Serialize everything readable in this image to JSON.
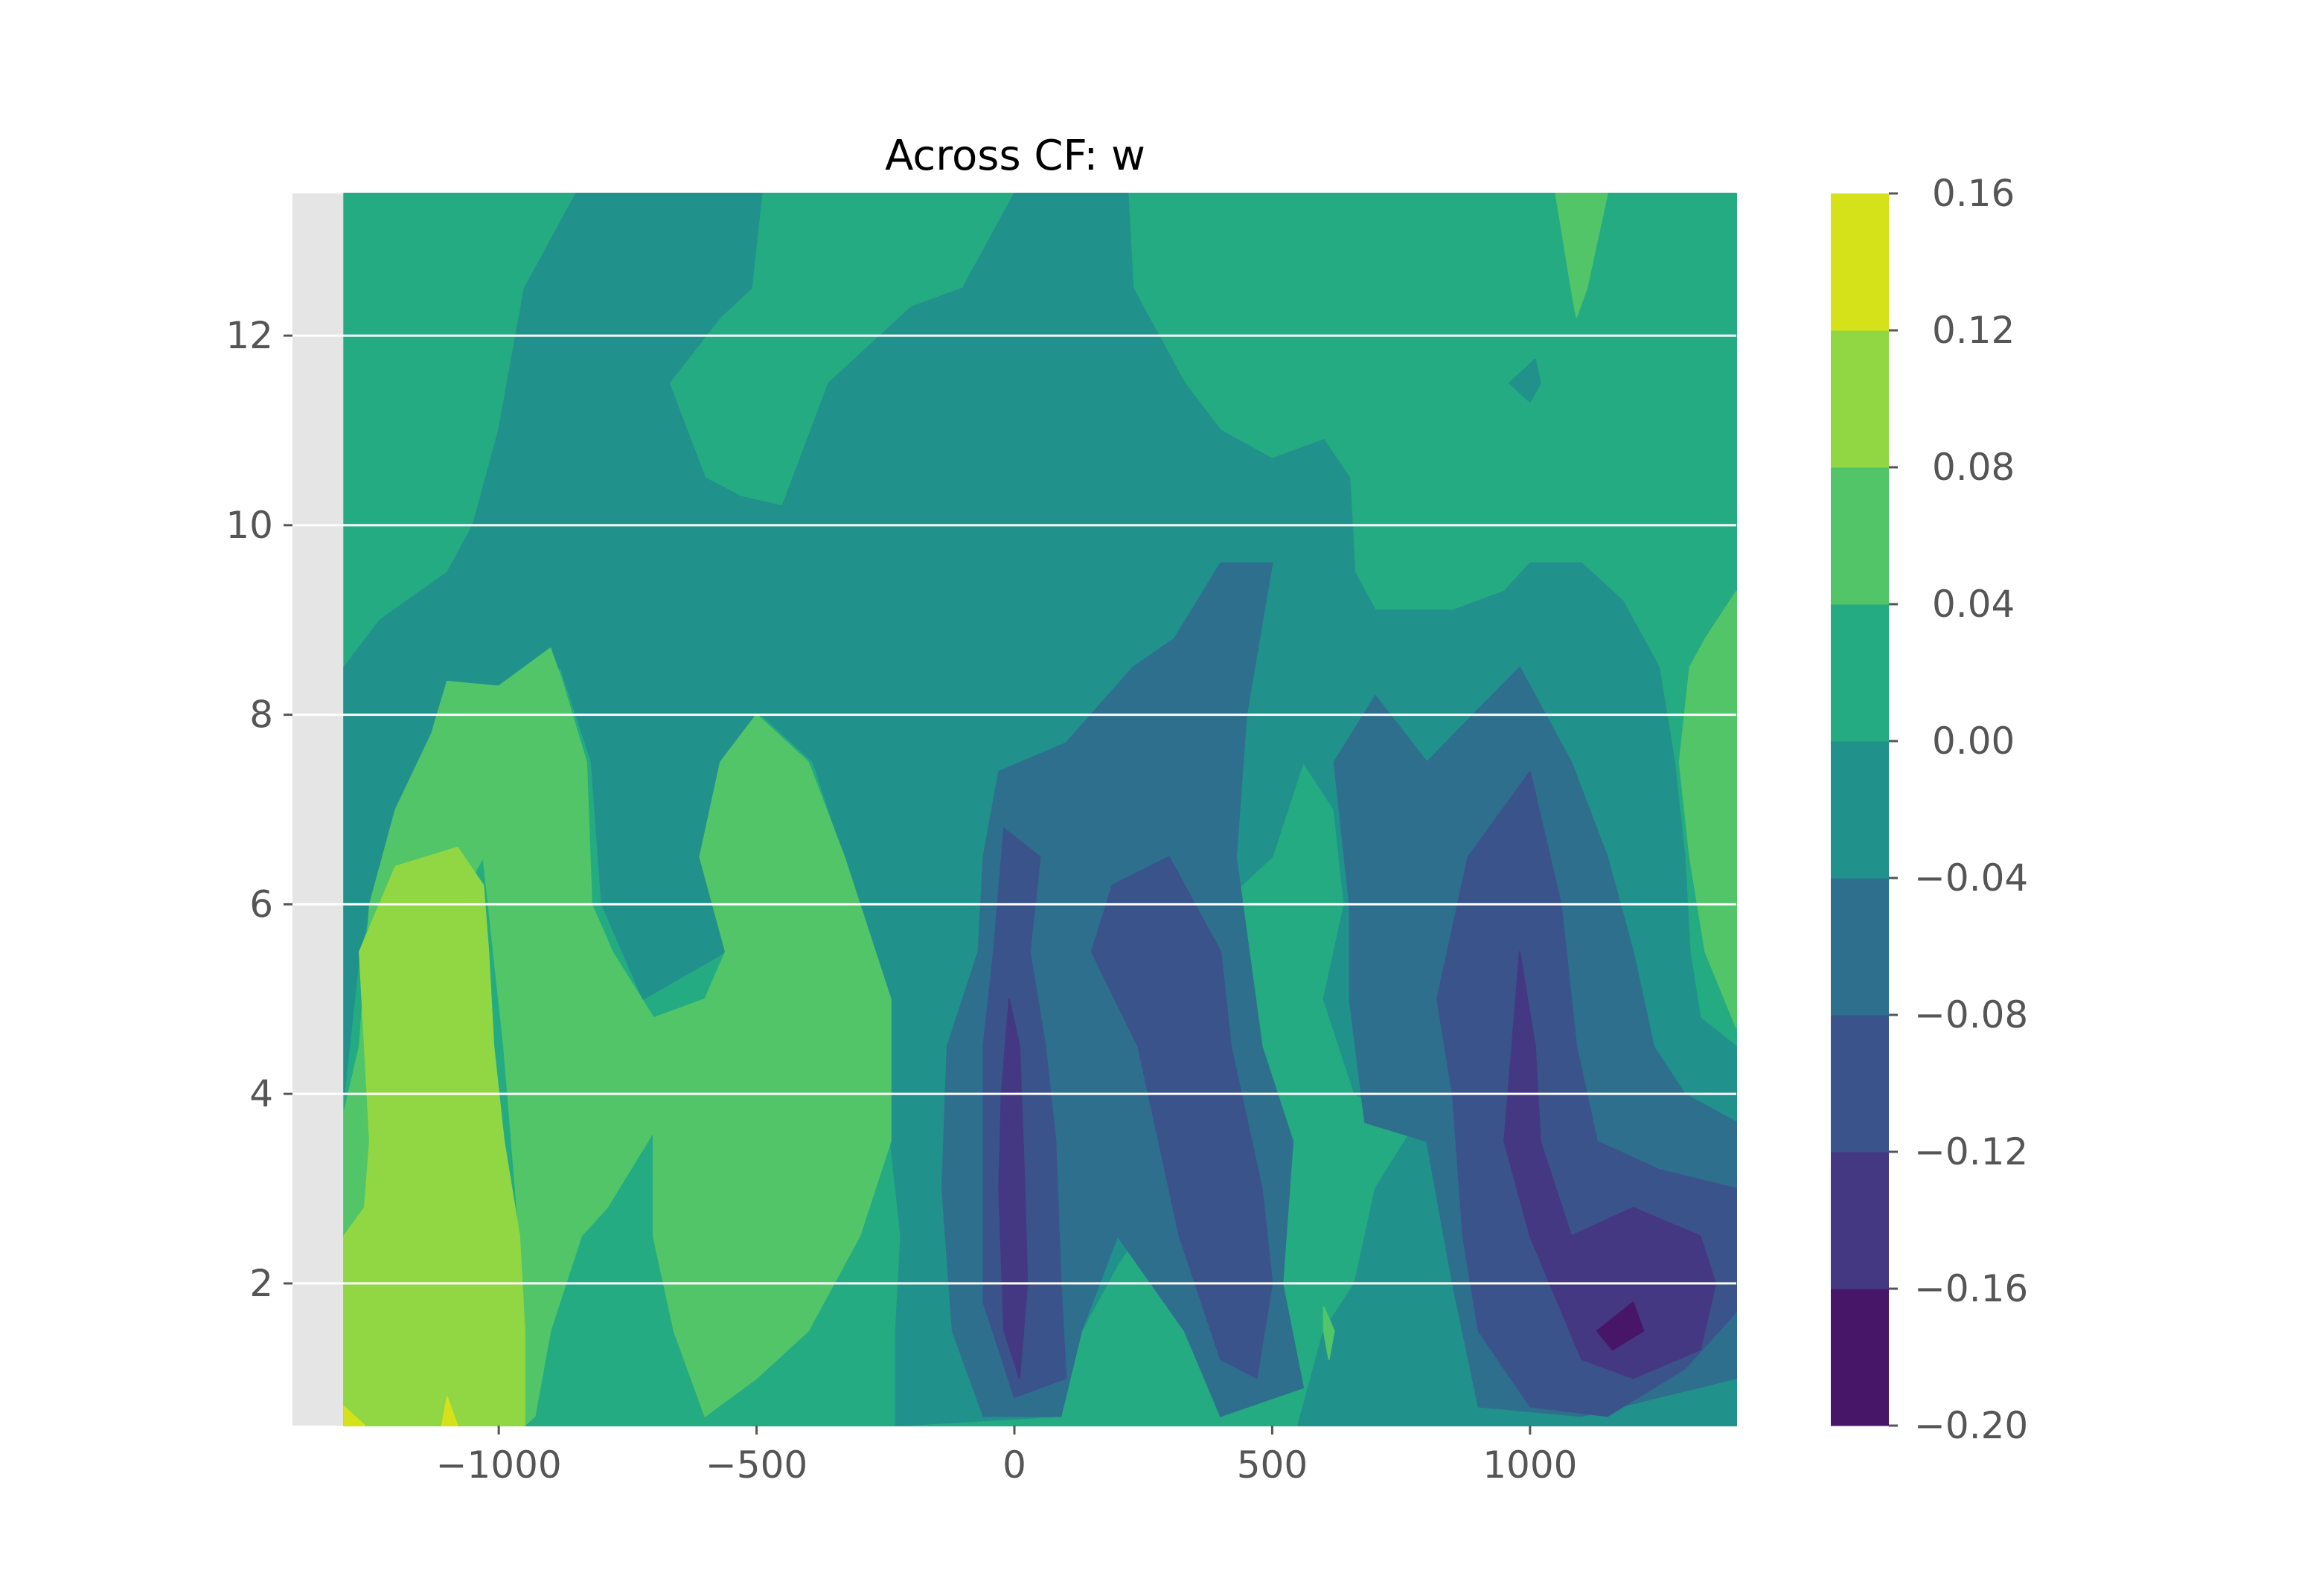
{
  "chart_data": {
    "type": "heatmap",
    "subtype": "filled-contour",
    "title": "Across CF: w",
    "xlabel": "",
    "ylabel": "",
    "colorbar_label": "",
    "xlim": [
      -1400,
      1400
    ],
    "ylim": [
      0.5,
      13.5
    ],
    "data_extent": {
      "x": [
        -1300,
        1400
      ],
      "y": [
        0.5,
        13.5
      ]
    },
    "xticks": [
      {
        "value": -1000,
        "label": "−1000"
      },
      {
        "value": -500,
        "label": "−500"
      },
      {
        "value": 0,
        "label": "0"
      },
      {
        "value": 500,
        "label": "500"
      },
      {
        "value": 1000,
        "label": "1000"
      }
    ],
    "yticks": [
      {
        "value": 2,
        "label": "2"
      },
      {
        "value": 4,
        "label": "4"
      },
      {
        "value": 6,
        "label": "6"
      },
      {
        "value": 8,
        "label": "8"
      },
      {
        "value": 10,
        "label": "10"
      },
      {
        "value": 12,
        "label": "12"
      }
    ],
    "levels": [
      -0.2,
      -0.16,
      -0.12,
      -0.08,
      -0.04,
      0.0,
      0.04,
      0.08,
      0.12,
      0.16
    ],
    "level_labels": [
      "−0.20",
      "−0.16",
      "−0.12",
      "−0.08",
      "−0.04",
      "0.00",
      "0.04",
      "0.08",
      "0.12",
      "0.16"
    ],
    "band_colors": [
      "#481668",
      "#453882",
      "#3b538b",
      "#2e6f8e",
      "#21918c",
      "#25ab82",
      "#52c569",
      "#90d743",
      "#d5e21a"
    ],
    "background_color": "#e5e5e5",
    "grid_color": "#ffffff",
    "grid": false,
    "colorbar": "right",
    "regions": [
      {
        "level": 0.0,
        "points": [
          [
            -1300,
            0.5
          ],
          [
            1400,
            0.5
          ],
          [
            1400,
            13.5
          ],
          [
            -1300,
            13.5
          ]
        ]
      },
      {
        "level": -0.04,
        "points": [
          [
            -490,
            13.5
          ],
          [
            -510,
            12.5
          ],
          [
            -570,
            12.2
          ],
          [
            -670,
            11.5
          ],
          [
            -600,
            10.5
          ],
          [
            -530,
            10.3
          ],
          [
            -450,
            10.2
          ],
          [
            -360,
            11.5
          ],
          [
            -200,
            12.3
          ],
          [
            -100,
            12.5
          ],
          [
            0,
            13.5
          ],
          [
            220,
            13.5
          ],
          [
            230,
            12.5
          ],
          [
            330,
            11.5
          ],
          [
            400,
            11
          ],
          [
            500,
            10.7
          ],
          [
            600,
            10.9
          ],
          [
            650,
            10.5
          ],
          [
            660,
            9.5
          ],
          [
            700,
            9.1
          ],
          [
            850,
            9.1
          ],
          [
            950,
            9.3
          ],
          [
            1000,
            9.6
          ],
          [
            1100,
            9.6
          ],
          [
            1180,
            9.2
          ],
          [
            1250,
            8.5
          ],
          [
            1280,
            7.5
          ],
          [
            1300,
            6.5
          ],
          [
            1310,
            5.5
          ],
          [
            1330,
            4.8
          ],
          [
            1400,
            4.5
          ],
          [
            1400,
            0.5
          ],
          [
            550,
            0.5
          ],
          [
            600,
            1.5
          ],
          [
            660,
            2
          ],
          [
            700,
            3
          ],
          [
            780,
            3.7
          ],
          [
            660,
            4
          ],
          [
            600,
            5
          ],
          [
            640,
            6
          ],
          [
            620,
            7
          ],
          [
            560,
            7.5
          ],
          [
            500,
            6.5
          ],
          [
            400,
            6
          ],
          [
            350,
            4.5
          ],
          [
            300,
            3
          ],
          [
            200,
            2.2
          ],
          [
            130,
            1.5
          ],
          [
            90,
            0.6
          ],
          [
            -230,
            0.5
          ],
          [
            -230,
            1.5
          ],
          [
            -220,
            2.5
          ],
          [
            -240,
            3.5
          ],
          [
            -250,
            5
          ],
          [
            -330,
            6.5
          ],
          [
            -390,
            7.5
          ],
          [
            -490,
            8
          ],
          [
            -570,
            7.5
          ],
          [
            -610,
            6.5
          ],
          [
            -560,
            5.5
          ],
          [
            -720,
            5
          ],
          [
            -800,
            6
          ],
          [
            -820,
            7.5
          ],
          [
            -880,
            8.5
          ],
          [
            -960,
            8.2
          ],
          [
            -1100,
            8
          ],
          [
            -1200,
            7
          ],
          [
            -1270,
            5.5
          ],
          [
            -1300,
            4
          ],
          [
            -1300,
            8.5
          ],
          [
            -1230,
            9
          ],
          [
            -1100,
            9.5
          ],
          [
            -1050,
            10
          ],
          [
            -1000,
            11
          ],
          [
            -950,
            12.5
          ],
          [
            -850,
            13.5
          ]
        ]
      },
      {
        "level": -0.08,
        "points": [
          [
            -60,
            6.5
          ],
          [
            -30,
            7.4
          ],
          [
            100,
            7.7
          ],
          [
            230,
            8.5
          ],
          [
            310,
            8.8
          ],
          [
            400,
            9.6
          ],
          [
            500,
            9.6
          ],
          [
            450,
            8
          ],
          [
            430,
            6.5
          ],
          [
            480,
            4.5
          ],
          [
            540,
            3.5
          ],
          [
            520,
            2
          ],
          [
            560,
            0.9
          ],
          [
            400,
            0.6
          ],
          [
            330,
            1.5
          ],
          [
            200,
            2.5
          ],
          [
            130,
            1.5
          ],
          [
            90,
            0.6
          ],
          [
            -60,
            0.6
          ],
          [
            -120,
            1.5
          ],
          [
            -140,
            3
          ],
          [
            -130,
            4.5
          ],
          [
            -70,
            5.5
          ]
        ]
      },
      {
        "level": -0.08,
        "points": [
          [
            620,
            7.5
          ],
          [
            700,
            8.2
          ],
          [
            800,
            7.5
          ],
          [
            980,
            8.5
          ],
          [
            1080,
            7.5
          ],
          [
            1150,
            6.5
          ],
          [
            1200,
            5.5
          ],
          [
            1240,
            4.5
          ],
          [
            1300,
            4
          ],
          [
            1400,
            3.7
          ],
          [
            1400,
            1
          ],
          [
            1100,
            0.6
          ],
          [
            900,
            0.7
          ],
          [
            850,
            2
          ],
          [
            800,
            3.5
          ],
          [
            680,
            3.7
          ],
          [
            650,
            5
          ],
          [
            650,
            6
          ]
        ]
      },
      {
        "level": -0.12,
        "points": [
          [
            -20,
            6.8
          ],
          [
            50,
            6.5
          ],
          [
            30,
            5.5
          ],
          [
            60,
            4.5
          ],
          [
            80,
            3.5
          ],
          [
            90,
            2
          ],
          [
            100,
            1
          ],
          [
            0,
            0.8
          ],
          [
            -60,
            1.8
          ],
          [
            -60,
            4.5
          ],
          [
            -40,
            5.5
          ]
        ]
      },
      {
        "level": -0.12,
        "points": [
          [
            150,
            5.5
          ],
          [
            190,
            6.2
          ],
          [
            300,
            6.5
          ],
          [
            400,
            5.5
          ],
          [
            420,
            4.5
          ],
          [
            480,
            3
          ],
          [
            500,
            2
          ],
          [
            470,
            1
          ],
          [
            400,
            1.2
          ],
          [
            320,
            2.5
          ],
          [
            280,
            3.5
          ],
          [
            240,
            4.5
          ]
        ]
      },
      {
        "level": -0.12,
        "points": [
          [
            880,
            6.5
          ],
          [
            1000,
            7.4
          ],
          [
            1060,
            6
          ],
          [
            1090,
            4.5
          ],
          [
            1130,
            3.5
          ],
          [
            1250,
            3.2
          ],
          [
            1400,
            3
          ],
          [
            1400,
            1.7
          ],
          [
            1300,
            1.1
          ],
          [
            1150,
            0.6
          ],
          [
            1000,
            0.7
          ],
          [
            900,
            1.5
          ],
          [
            870,
            2.5
          ],
          [
            850,
            4
          ],
          [
            820,
            5
          ]
        ]
      },
      {
        "level": -0.16,
        "points": [
          [
            -10,
            5
          ],
          [
            10,
            4.5
          ],
          [
            20,
            3
          ],
          [
            25,
            2
          ],
          [
            10,
            1
          ],
          [
            -20,
            1.5
          ],
          [
            -30,
            3
          ],
          [
            -25,
            4
          ]
        ]
      },
      {
        "level": -0.16,
        "points": [
          [
            980,
            5.5
          ],
          [
            1010,
            4.5
          ],
          [
            1020,
            3.5
          ],
          [
            1080,
            2.5
          ],
          [
            1200,
            2.8
          ],
          [
            1330,
            2.5
          ],
          [
            1360,
            2
          ],
          [
            1330,
            1.3
          ],
          [
            1200,
            1
          ],
          [
            1100,
            1.2
          ],
          [
            1000,
            2.5
          ],
          [
            950,
            3.5
          ]
        ]
      },
      {
        "level": -0.2,
        "points": [
          [
            1130,
            1.5
          ],
          [
            1200,
            1.8
          ],
          [
            1220,
            1.5
          ],
          [
            1160,
            1.3
          ]
        ]
      },
      {
        "level": -0.04,
        "points": [
          [
            960,
            11.5
          ],
          [
            1010,
            11.75
          ],
          [
            1020,
            11.5
          ],
          [
            1000,
            11.3
          ]
        ]
      },
      {
        "level": 0.04,
        "points": [
          [
            -1300,
            2.5
          ],
          [
            -1300,
            3.8
          ],
          [
            -1270,
            4.5
          ],
          [
            -1250,
            6
          ],
          [
            -1200,
            7
          ],
          [
            -1130,
            7.8
          ],
          [
            -1100,
            8.35
          ],
          [
            -1000,
            8.3
          ],
          [
            -950,
            8.5
          ],
          [
            -900,
            8.7
          ],
          [
            -880,
            8.4
          ],
          [
            -830,
            7.5
          ],
          [
            -820,
            6
          ],
          [
            -780,
            5.5
          ],
          [
            -700,
            4.8
          ],
          [
            -600,
            5
          ],
          [
            -560,
            5.5
          ],
          [
            -610,
            6.5
          ],
          [
            -570,
            7.5
          ],
          [
            -500,
            8
          ],
          [
            -400,
            7.5
          ],
          [
            -330,
            6.5
          ],
          [
            -240,
            5
          ],
          [
            -240,
            3.5
          ],
          [
            -300,
            2.5
          ],
          [
            -400,
            1.5
          ],
          [
            -500,
            1
          ],
          [
            -600,
            0.6
          ],
          [
            -660,
            1.5
          ],
          [
            -700,
            2.5
          ],
          [
            -700,
            3.6
          ],
          [
            -790,
            2.8
          ],
          [
            -840,
            2.5
          ],
          [
            -900,
            1.5
          ],
          [
            -930,
            0.6
          ],
          [
            -950,
            0.5
          ],
          [
            -950,
            1.5
          ],
          [
            -960,
            2.5
          ],
          [
            -990,
            4.5
          ],
          [
            -1030,
            6.5
          ],
          [
            -1130,
            5.5
          ],
          [
            -1210,
            3
          ],
          [
            -1240,
            2.7
          ]
        ]
      },
      {
        "level": 0.04,
        "points": [
          [
            1400,
            9.3
          ],
          [
            1400,
            4.7
          ],
          [
            1340,
            5.5
          ],
          [
            1310,
            6.5
          ],
          [
            1290,
            7.5
          ],
          [
            1310,
            8.5
          ],
          [
            1340,
            8.8
          ]
        ]
      },
      {
        "level": 0.04,
        "points": [
          [
            1050,
            13.5
          ],
          [
            1150,
            13.5
          ],
          [
            1110,
            12.5
          ],
          [
            1090,
            12.2
          ],
          [
            1080,
            12.5
          ]
        ]
      },
      {
        "level": 0.04,
        "points": [
          [
            600,
            1.75
          ],
          [
            620,
            1.5
          ],
          [
            610,
            1.2
          ],
          [
            600,
            1.5
          ]
        ]
      },
      {
        "level": 0.08,
        "points": [
          [
            -1300,
            0.5
          ],
          [
            -950,
            0.5
          ],
          [
            -950,
            1.5
          ],
          [
            -960,
            2.5
          ],
          [
            -990,
            3.5
          ],
          [
            -1010,
            4.5
          ],
          [
            -1020,
            5.5
          ],
          [
            -1030,
            6.2
          ],
          [
            -1080,
            6.6
          ],
          [
            -1200,
            6.4
          ],
          [
            -1270,
            5.5
          ],
          [
            -1260,
            4.5
          ],
          [
            -1250,
            3.5
          ],
          [
            -1260,
            2.8
          ],
          [
            -1300,
            2.5
          ]
        ]
      },
      {
        "level": 0.12,
        "points": [
          [
            -1300,
            0.5
          ],
          [
            -1260,
            0.5
          ],
          [
            -1300,
            0.7
          ]
        ]
      },
      {
        "level": 0.12,
        "points": [
          [
            -1110,
            0.5
          ],
          [
            -1080,
            0.5
          ],
          [
            -1100,
            0.8
          ]
        ]
      }
    ]
  }
}
